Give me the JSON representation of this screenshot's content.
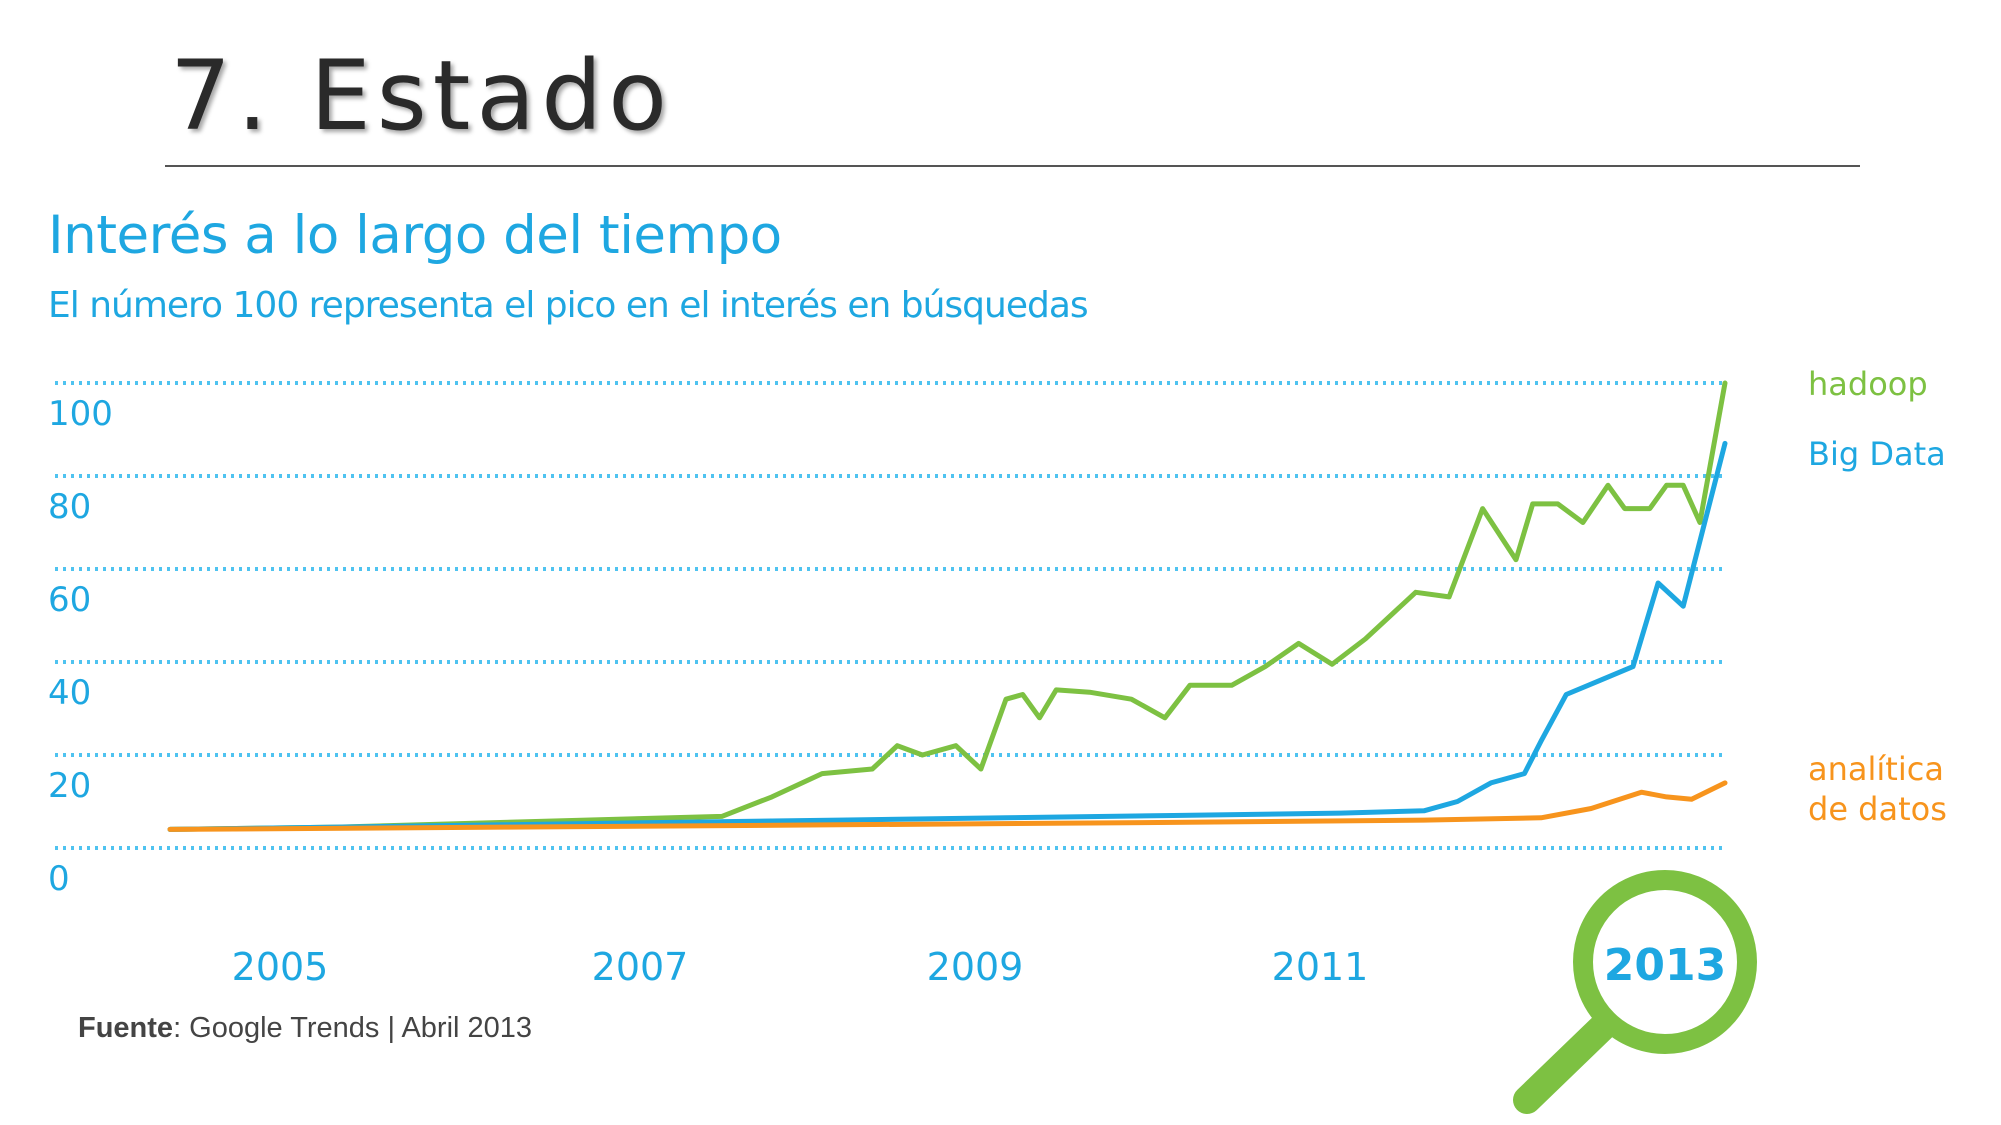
{
  "slide": {
    "title": "7. Estado"
  },
  "source": {
    "label": "Fuente",
    "text": ": Google Trends | Abril 2013"
  },
  "colors": {
    "hadoop": "#7dc142",
    "big_data": "#1ea7e1",
    "analitica": "#f7941d",
    "axis_text": "#1ea7e1",
    "grid": "#4fc3f0"
  },
  "chart_data": {
    "type": "line",
    "title": "Interés a lo largo del tiempo",
    "subtitle": "El número 100 representa el pico en el interés en búsquedas",
    "ylim": [
      0,
      100
    ],
    "y_ticks": [
      0,
      20,
      40,
      60,
      80,
      100
    ],
    "x_ticks": [
      "2005",
      "2007",
      "2009",
      "2011",
      "2013"
    ],
    "highlight_tick": "2013",
    "grid": true,
    "xlim": [
      2004.0,
      2013.3
    ],
    "series": [
      {
        "name": "hadoop",
        "label_lines": [
          "hadoop"
        ],
        "color": "#7dc142",
        "points": [
          [
            2004.0,
            4
          ],
          [
            2005.0,
            4.5
          ],
          [
            2006.0,
            5.5
          ],
          [
            2007.0,
            6.5
          ],
          [
            2007.3,
            6.8
          ],
          [
            2007.6,
            11
          ],
          [
            2007.9,
            16
          ],
          [
            2008.2,
            17
          ],
          [
            2008.35,
            22
          ],
          [
            2008.5,
            20
          ],
          [
            2008.7,
            22
          ],
          [
            2008.85,
            17
          ],
          [
            2009.0,
            32
          ],
          [
            2009.1,
            33
          ],
          [
            2009.2,
            28
          ],
          [
            2009.3,
            34
          ],
          [
            2009.5,
            33.5
          ],
          [
            2009.75,
            32
          ],
          [
            2009.95,
            28
          ],
          [
            2010.1,
            35
          ],
          [
            2010.35,
            35
          ],
          [
            2010.55,
            39
          ],
          [
            2010.75,
            44
          ],
          [
            2010.95,
            39.5
          ],
          [
            2011.15,
            45
          ],
          [
            2011.45,
            55
          ],
          [
            2011.65,
            54
          ],
          [
            2011.85,
            73
          ],
          [
            2012.05,
            62
          ],
          [
            2012.15,
            74
          ],
          [
            2012.3,
            74
          ],
          [
            2012.45,
            70
          ],
          [
            2012.6,
            78
          ],
          [
            2012.7,
            73
          ],
          [
            2012.85,
            73
          ],
          [
            2012.95,
            78
          ],
          [
            2013.05,
            78
          ],
          [
            2013.15,
            70
          ],
          [
            2013.3,
            100
          ]
        ]
      },
      {
        "name": "Big Data",
        "label_lines": [
          "Big Data"
        ],
        "color": "#1ea7e1",
        "points": [
          [
            2004.0,
            4
          ],
          [
            2005.0,
            4.5
          ],
          [
            2006.0,
            5
          ],
          [
            2007.0,
            5.5
          ],
          [
            2008.0,
            6
          ],
          [
            2009.0,
            6.5
          ],
          [
            2010.0,
            7
          ],
          [
            2011.0,
            7.5
          ],
          [
            2011.5,
            8
          ],
          [
            2011.7,
            10
          ],
          [
            2011.9,
            14
          ],
          [
            2012.1,
            16
          ],
          [
            2012.2,
            23
          ],
          [
            2012.35,
            33
          ],
          [
            2012.55,
            36
          ],
          [
            2012.75,
            39
          ],
          [
            2012.9,
            57
          ],
          [
            2013.05,
            52
          ],
          [
            2013.3,
            87
          ]
        ]
      },
      {
        "name": "analítica de datos",
        "label_lines": [
          "analítica",
          "de datos"
        ],
        "color": "#f7941d",
        "points": [
          [
            2004.0,
            4
          ],
          [
            2006.0,
            4.5
          ],
          [
            2008.0,
            5
          ],
          [
            2010.0,
            5.5
          ],
          [
            2011.5,
            6
          ],
          [
            2012.2,
            6.5
          ],
          [
            2012.5,
            8.5
          ],
          [
            2012.8,
            12
          ],
          [
            2012.95,
            11
          ],
          [
            2013.1,
            10.5
          ],
          [
            2013.3,
            14
          ]
        ]
      }
    ]
  }
}
